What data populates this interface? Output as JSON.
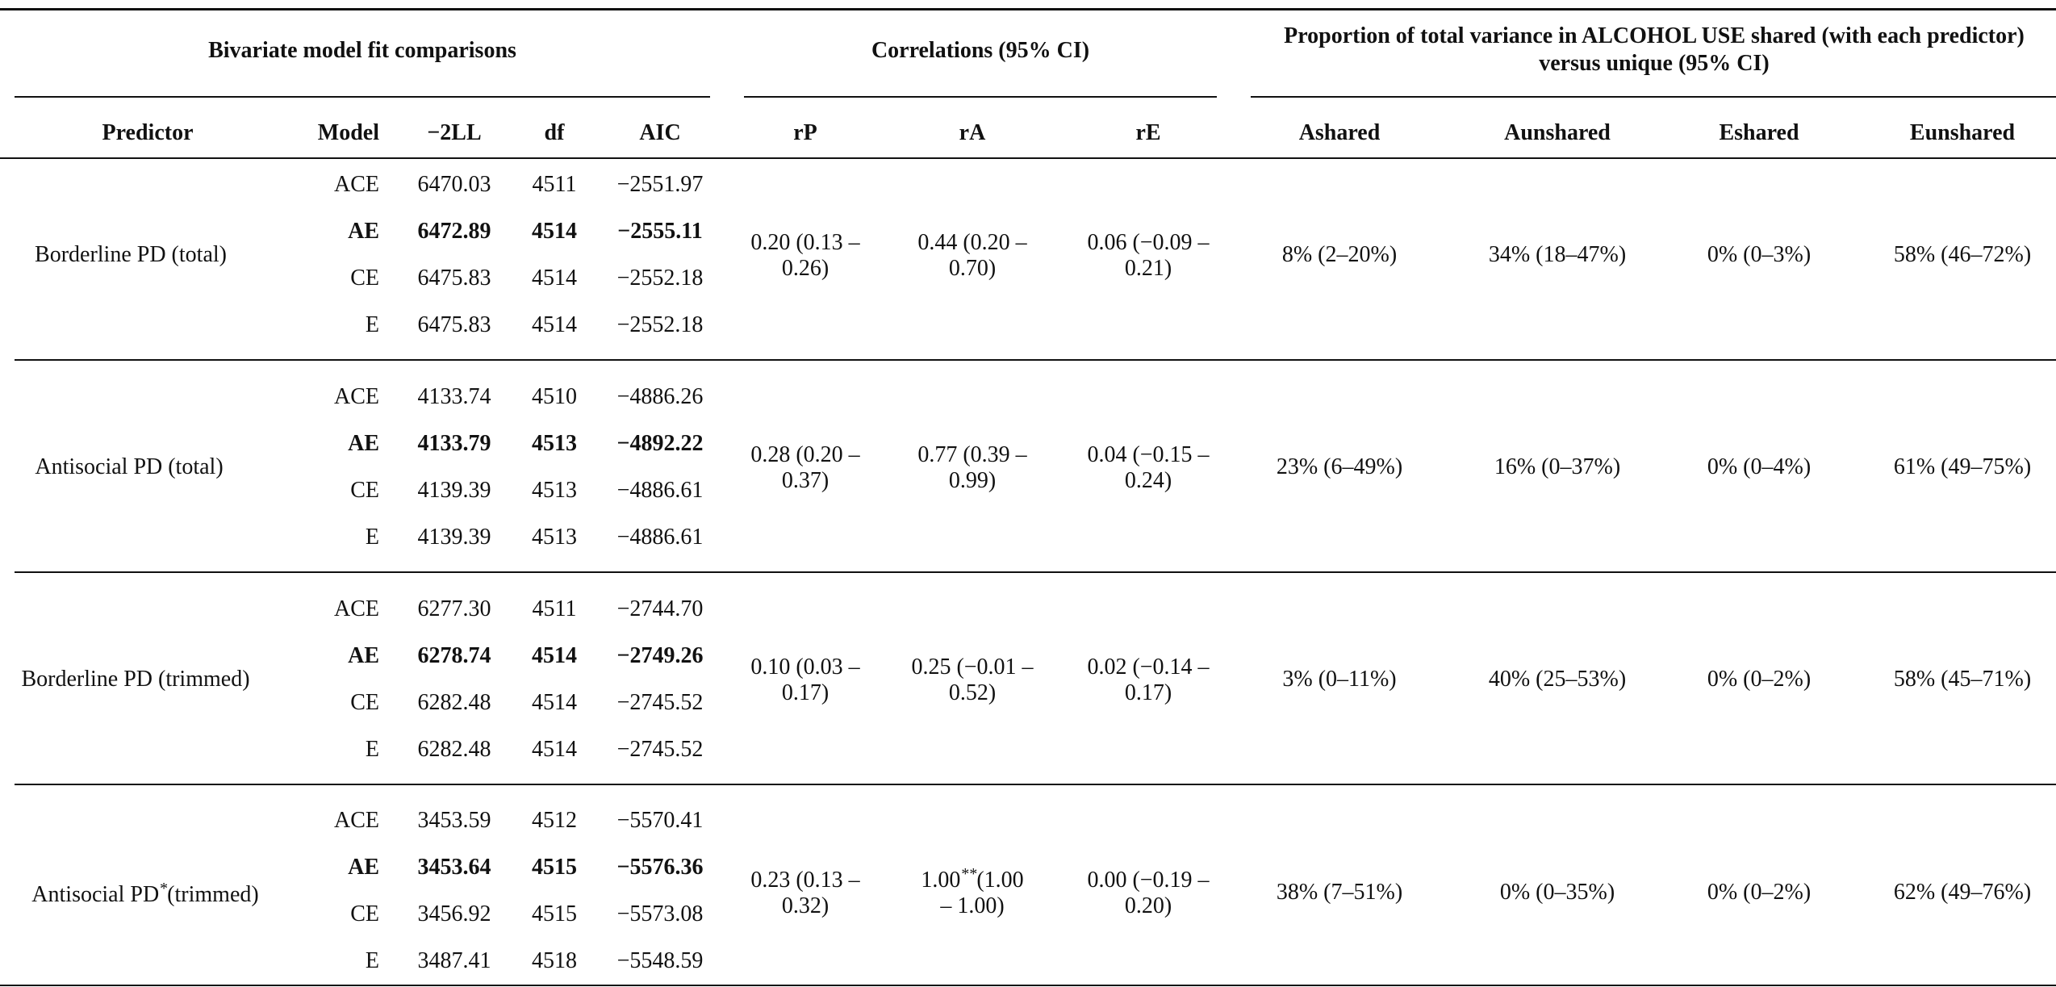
{
  "group_headers": {
    "fit": "Bivariate model fit comparisons",
    "corr": "Correlations (95% CI)",
    "prop": "Proportion of total variance in ALCOHOL USE shared (with each predictor) versus unique (95% CI)"
  },
  "columns": {
    "predictor": "Predictor",
    "model": "Model",
    "ll": "−2LL",
    "df": "df",
    "aic": "AIC",
    "rp": "rP",
    "ra": "rA",
    "re": "rE",
    "ashared": "Ashared",
    "aunshared": "Aunshared",
    "eshared": "Eshared",
    "eunshared": "Eunshared"
  },
  "blocks": [
    {
      "predictor": "Borderline PD (total)",
      "models": [
        {
          "model": "ACE",
          "ll": "6470.03",
          "df": "4511",
          "aic": "−2551.97",
          "bold": false
        },
        {
          "model": "AE",
          "ll": "6472.89",
          "df": "4514",
          "aic": "−2555.11",
          "bold": true
        },
        {
          "model": "CE",
          "ll": "6475.83",
          "df": "4514",
          "aic": "−2552.18",
          "bold": false
        },
        {
          "model": "E",
          "ll": "6475.83",
          "df": "4514",
          "aic": "−2552.18",
          "bold": false
        }
      ],
      "rp": [
        "0.20 (0.13 –",
        "0.26)"
      ],
      "ra": [
        "0.44 (0.20 –",
        "0.70)"
      ],
      "re": [
        "0.06 (−0.09 –",
        "0.21)"
      ],
      "ashared": "8% (2–20%)",
      "aunshared": "34% (18–47%)",
      "eshared": "0% (0–3%)",
      "eunshared": "58% (46–72%)"
    },
    {
      "predictor": "Antisocial PD (total)",
      "models": [
        {
          "model": "ACE",
          "ll": "4133.74",
          "df": "4510",
          "aic": "−4886.26",
          "bold": false
        },
        {
          "model": "AE",
          "ll": "4133.79",
          "df": "4513",
          "aic": "−4892.22",
          "bold": true
        },
        {
          "model": "CE",
          "ll": "4139.39",
          "df": "4513",
          "aic": "−4886.61",
          "bold": false
        },
        {
          "model": "E",
          "ll": "4139.39",
          "df": "4513",
          "aic": "−4886.61",
          "bold": false
        }
      ],
      "rp": [
        "0.28 (0.20 –",
        "0.37)"
      ],
      "ra": [
        "0.77 (0.39 –",
        "0.99)"
      ],
      "re": [
        "0.04 (−0.15 –",
        "0.24)"
      ],
      "ashared": "23% (6–49%)",
      "aunshared": "16% (0–37%)",
      "eshared": "0% (0–4%)",
      "eunshared": "61% (49–75%)"
    },
    {
      "predictor": "Borderline PD (trimmed)",
      "models": [
        {
          "model": "ACE",
          "ll": "6277.30",
          "df": "4511",
          "aic": "−2744.70",
          "bold": false
        },
        {
          "model": "AE",
          "ll": "6278.74",
          "df": "4514",
          "aic": "−2749.26",
          "bold": true
        },
        {
          "model": "CE",
          "ll": "6282.48",
          "df": "4514",
          "aic": "−2745.52",
          "bold": false
        },
        {
          "model": "E",
          "ll": "6282.48",
          "df": "4514",
          "aic": "−2745.52",
          "bold": false
        }
      ],
      "rp": [
        "0.10 (0.03 –",
        "0.17)"
      ],
      "ra": [
        "0.25 (−0.01 –",
        "0.52)"
      ],
      "re": [
        "0.02 (−0.14 –",
        "0.17)"
      ],
      "ashared": "3% (0–11%)",
      "aunshared": "40% (25–53%)",
      "eshared": "0% (0–2%)",
      "eunshared": "58% (45–71%)"
    },
    {
      "predictor_main": "Antisocial PD",
      "predictor_sup": "*",
      "predictor_tail": "(trimmed)",
      "models": [
        {
          "model": "ACE",
          "ll": "3453.59",
          "df": "4512",
          "aic": "−5570.41",
          "bold": false
        },
        {
          "model": "AE",
          "ll": "3453.64",
          "df": "4515",
          "aic": "−5576.36",
          "bold": true
        },
        {
          "model": "CE",
          "ll": "3456.92",
          "df": "4515",
          "aic": "−5573.08",
          "bold": false
        },
        {
          "model": "E",
          "ll": "3487.41",
          "df": "4518",
          "aic": "−5548.59",
          "bold": false
        }
      ],
      "rp": [
        "0.23 (0.13 –",
        "0.32)"
      ],
      "ra_main": "1.00",
      "ra_sup": "**",
      "ra_tail": "(1.00",
      "ra_line2": "– 1.00)",
      "re": [
        "0.00 (−0.19 –",
        "0.20)"
      ],
      "ashared": "38% (7–51%)",
      "aunshared": "0% (0–35%)",
      "eshared": "0% (0–2%)",
      "eunshared": "62% (49–76%)"
    }
  ]
}
